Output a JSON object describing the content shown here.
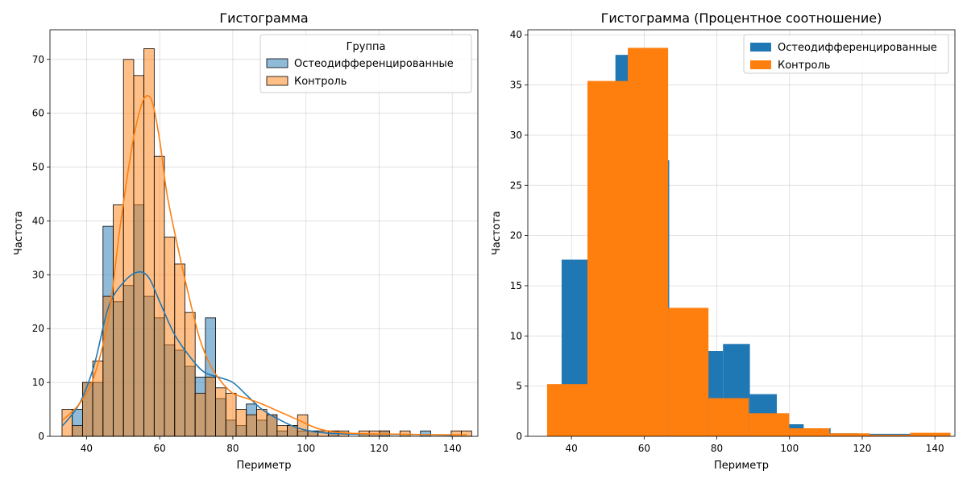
{
  "chart_data": [
    {
      "type": "bar",
      "title": "Гистограмма",
      "xlabel": "Периметр",
      "ylabel": "Частота",
      "xlim": [
        30,
        147
      ],
      "ylim": [
        0,
        75.5
      ],
      "xticks": [
        40,
        60,
        80,
        100,
        120,
        140
      ],
      "yticks": [
        0,
        10,
        20,
        30,
        40,
        50,
        60,
        70
      ],
      "grid": true,
      "legend": {
        "title": "Группа",
        "position": "top-right"
      },
      "bin_edges": [
        33.3,
        36.1,
        38.9,
        41.7,
        44.5,
        47.3,
        50.1,
        52.9,
        55.7,
        58.5,
        61.3,
        64.1,
        66.9,
        69.7,
        72.5,
        75.3,
        78.1,
        80.9,
        83.7,
        86.5,
        89.3,
        92.1,
        94.9,
        97.7,
        100.5,
        103.3,
        106.1,
        108.9,
        111.7,
        114.5,
        117.3,
        120.1,
        122.9,
        125.7,
        128.5,
        131.3,
        134.1,
        136.9,
        139.7,
        142.5,
        145.3
      ],
      "series": [
        {
          "name": "Остеодифференцированные",
          "color": "#1f77b4",
          "values": [
            0,
            5,
            10,
            10,
            39,
            25,
            28,
            43,
            26,
            22,
            17,
            16,
            13,
            11,
            22,
            7,
            3,
            2,
            6,
            3,
            4,
            1,
            2,
            1,
            1,
            0,
            1,
            0,
            0,
            0,
            0,
            1,
            0,
            0,
            0,
            1,
            0,
            0,
            0,
            0
          ],
          "kde": [
            [
              33.5,
              2
            ],
            [
              38,
              6
            ],
            [
              42,
              13
            ],
            [
              46,
              24
            ],
            [
              50,
              28.5
            ],
            [
              54,
              30.5
            ],
            [
              57,
              29.5
            ],
            [
              60,
              25
            ],
            [
              64,
              19
            ],
            [
              68,
              15
            ],
            [
              72,
              12
            ],
            [
              76,
              11
            ],
            [
              80,
              10
            ],
            [
              84,
              7.5
            ],
            [
              88,
              5
            ],
            [
              93,
              3
            ],
            [
              98,
              1.5
            ],
            [
              104,
              0.7
            ],
            [
              112,
              0.4
            ],
            [
              120,
              0.35
            ],
            [
              130,
              0.3
            ],
            [
              140,
              0.2
            ]
          ]
        },
        {
          "name": "Контроль",
          "color": "#ff7f0e",
          "values": [
            5,
            2,
            10,
            14,
            26,
            43,
            70,
            67,
            72,
            52,
            37,
            32,
            23,
            8,
            11,
            9,
            8,
            5,
            4,
            5,
            4,
            2,
            2,
            4,
            1,
            1,
            1,
            1,
            0,
            1,
            1,
            1,
            0,
            1,
            0,
            0,
            0,
            0,
            1,
            1
          ],
          "kde": [
            [
              33.5,
              3
            ],
            [
              38,
              6
            ],
            [
              42,
              11
            ],
            [
              46,
              22
            ],
            [
              49,
              38
            ],
            [
              52,
              52
            ],
            [
              54,
              59
            ],
            [
              56,
              63
            ],
            [
              58,
              62
            ],
            [
              60,
              55
            ],
            [
              62,
              45
            ],
            [
              65,
              35
            ],
            [
              68,
              26
            ],
            [
              71,
              18
            ],
            [
              74,
              13
            ],
            [
              77,
              10
            ],
            [
              80,
              8
            ],
            [
              84,
              7
            ],
            [
              88,
              6
            ],
            [
              93,
              4.5
            ],
            [
              98,
              3
            ],
            [
              103,
              1.5
            ],
            [
              108,
              0.8
            ],
            [
              115,
              0.5
            ],
            [
              125,
              0.4
            ],
            [
              135,
              0.3
            ],
            [
              144,
              0.3
            ]
          ]
        }
      ]
    },
    {
      "type": "bar",
      "title": "Гистограмма (Процентное соотношение)",
      "xlabel": "Периметр",
      "ylabel": "Частота",
      "xlim": [
        28,
        145.5
      ],
      "ylim": [
        0,
        40.5
      ],
      "xticks": [
        40,
        60,
        80,
        100,
        120,
        140
      ],
      "yticks": [
        0,
        5,
        10,
        15,
        20,
        25,
        30,
        35,
        40
      ],
      "grid": true,
      "legend": {
        "position": "top-right"
      },
      "series": [
        {
          "name": "Остеодифференцированные",
          "color": "#1f77b4",
          "bins": [
            [
              37.3,
              44.7,
              17.6
            ],
            [
              44.7,
              52.1,
              26.0
            ],
            [
              52.1,
              59.5,
              38.0
            ],
            [
              59.5,
              66.9,
              27.5
            ],
            [
              66.9,
              74.3,
              12.0
            ],
            [
              74.3,
              81.7,
              8.5
            ],
            [
              81.7,
              89.1,
              9.2
            ],
            [
              89.1,
              96.5,
              4.2
            ],
            [
              96.5,
              103.9,
              1.2
            ],
            [
              103.9,
              111.3,
              0.8
            ],
            [
              111.3,
              118.7,
              0.3
            ],
            [
              118.7,
              126.1,
              0.25
            ],
            [
              126.1,
              133.5,
              0.25
            ]
          ]
        },
        {
          "name": "Контроль",
          "color": "#ff7f0e",
          "bins": [
            [
              33.3,
              44.4,
              5.2
            ],
            [
              44.4,
              55.5,
              35.4
            ],
            [
              55.5,
              66.6,
              38.7
            ],
            [
              66.6,
              77.7,
              12.8
            ],
            [
              77.7,
              88.8,
              3.8
            ],
            [
              88.8,
              99.9,
              2.3
            ],
            [
              99.9,
              111.0,
              0.8
            ],
            [
              111.0,
              122.1,
              0.3
            ],
            [
              122.1,
              133.2,
              0.15
            ],
            [
              133.2,
              144.3,
              0.35
            ]
          ]
        }
      ]
    }
  ]
}
